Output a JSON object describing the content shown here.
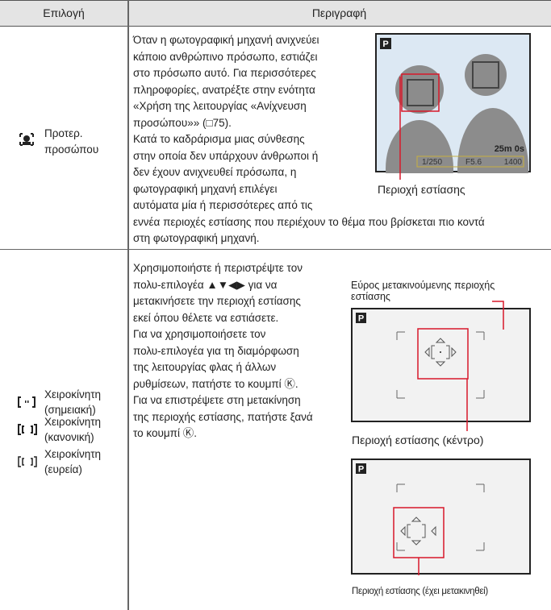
{
  "header": {
    "option": "Επιλογή",
    "description": "Περιγραφή"
  },
  "rows": [
    {
      "option_lines": [
        "Προτερ.",
        "προσώπου"
      ],
      "description_lines": [
        "Όταν η φωτογραφική μηχανή ανιχνεύει",
        "κάποιο ανθρώπινο πρόσωπο, εστιάζει",
        "στο πρόσωπο αυτό. Για περισσότερες",
        "πληροφορίες, ανατρέξτε στην ενότητα",
        "«Χρήση της λειτουργίας «Ανίχνευση",
        "προσώπου»» (□75).",
        "Κατά το καδράρισμα μιας σύνθεσης",
        "στην οποία δεν υπάρχουν άνθρωποι ή",
        "δεν έχουν ανιχνευθεί πρόσωπα, η",
        "φωτογραφική μηχανή επιλέγει",
        "αυτόματα μία ή περισσότερες από τις",
        "εννέα περιοχές εστίασης που περιέχουν το θέμα που βρίσκεται πιο κοντά",
        "στη φωτογραφική μηχανή."
      ],
      "figure": {
        "mode": "P",
        "remaining": "25m 0s",
        "shutter": "1/250",
        "aperture": "F5.6",
        "count": "1400",
        "caption": "Περιοχή εστίασης"
      }
    },
    {
      "options": [
        {
          "lines": [
            "Χειροκίνητη",
            "(σημειακή)"
          ]
        },
        {
          "lines": [
            "Χειροκίνητη",
            "(κανονική)"
          ]
        },
        {
          "lines": [
            "Χειροκίνητη",
            "(ευρεία)"
          ]
        }
      ],
      "description_lines": [
        "Χρησιμοποιήστε ή περιστρέψτε τον",
        "πολυ-επιλογέα ▲▼◀▶ για να",
        "μετακινήσετε την περιοχή εστίασης",
        "εκεί όπου θέλετε να εστιάσετε.",
        "Για να χρησιμοποιήσετε τον",
        "πολυ-επιλογέα για τη διαμόρφωση",
        "της λειτουργίας φλας ή άλλων",
        "ρυθμίσεων, πατήστε το κουμπί Ⓚ.",
        "Για να επιστρέψετε στη μετακίνηση",
        "της περιοχής εστίασης, πατήστε ξανά",
        "το κουμπί Ⓚ."
      ],
      "figure_top": {
        "range_label_lines": [
          "Εύρος μετακινούμενης περιοχής",
          "εστίασης"
        ],
        "mode": "P",
        "caption": "Περιοχή εστίασης (κέντρο)"
      },
      "figure_bottom": {
        "mode": "P",
        "caption": "Περιοχή εστίασης (έχει μετακινηθεί)"
      }
    }
  ]
}
